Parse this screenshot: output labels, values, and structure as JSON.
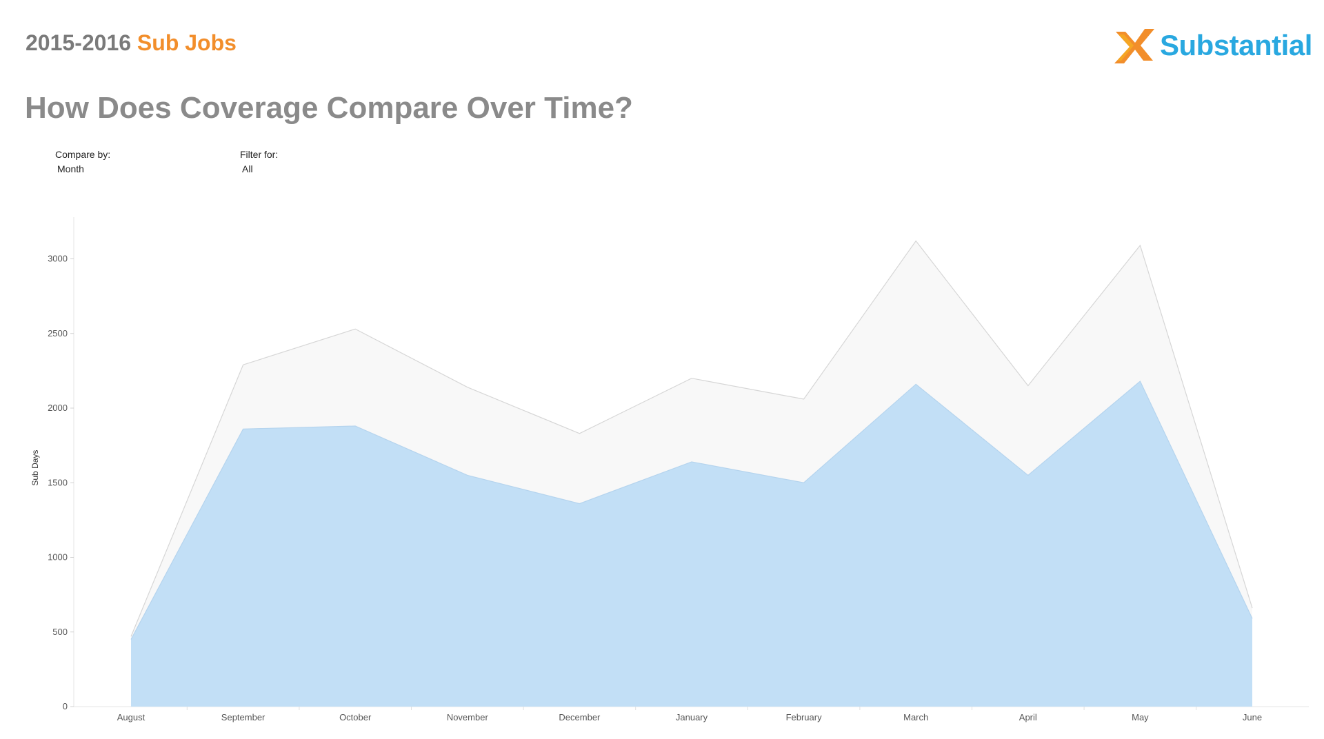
{
  "header": {
    "title_prefix": "2015-2016",
    "title_suffix": "Sub Jobs",
    "logo_text": "Substantial",
    "page_title": "How Does Coverage Compare Over Time?"
  },
  "filters": {
    "compare_label": "Compare by:",
    "compare_value": "Month",
    "filter_label": "Filter for:",
    "filter_value": "All"
  },
  "colors": {
    "brand_orange": "#f28e2b",
    "brand_blue": "#29a8e0",
    "total_area": "#f8f8f8",
    "total_line": "#d6d6d6",
    "filled_area": "#c2dff6",
    "filled_line": "#b5d4ee"
  },
  "chart_data": {
    "type": "area",
    "categories": [
      "August",
      "September",
      "October",
      "November",
      "December",
      "January",
      "February",
      "March",
      "April",
      "May",
      "June"
    ],
    "series": [
      {
        "values": [
          470,
          2290,
          2530,
          2140,
          1830,
          2200,
          2060,
          3120,
          2150,
          3090,
          660
        ]
      },
      {
        "values": [
          450,
          1860,
          1880,
          1550,
          1360,
          1640,
          1500,
          2160,
          1550,
          2180,
          590
        ]
      }
    ],
    "ylabel": "Sub Days",
    "xlabel": "",
    "ylim": [
      0,
      3300
    ],
    "yticks": [
      0,
      500,
      1000,
      1500,
      2000,
      2500,
      3000
    ],
    "grid": false,
    "legend": "none"
  }
}
